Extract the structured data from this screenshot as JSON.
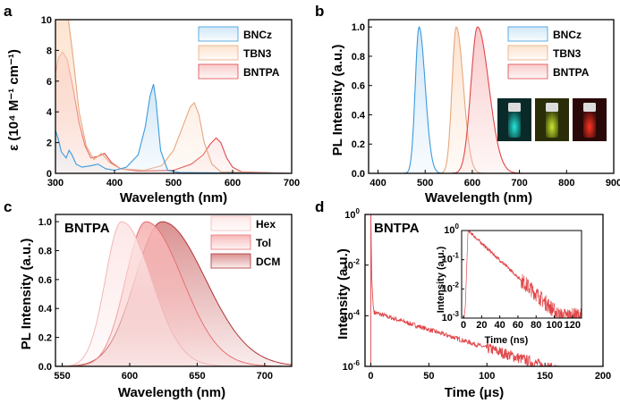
{
  "figure": {
    "panels": [
      "a",
      "b",
      "c",
      "d"
    ]
  },
  "chart_data": [
    {
      "panel": "a",
      "type": "area",
      "xlabel": "Wavelength (nm)",
      "ylabel": "ε (10⁴ M⁻¹ cm⁻¹)",
      "xlim": [
        300,
        700
      ],
      "ylim": [
        0,
        10
      ],
      "xticks": [
        300,
        400,
        500,
        600,
        700
      ],
      "yticks": [
        0,
        2,
        4,
        6,
        8,
        10
      ],
      "legend": "top-right",
      "series": [
        {
          "name": "BNCz",
          "color": "#3a9bdc",
          "fill": "#cfe6f7",
          "points": [
            [
              300,
              2.8
            ],
            [
              305,
              2.2
            ],
            [
              310,
              1.4
            ],
            [
              318,
              1.0
            ],
            [
              323,
              1.5
            ],
            [
              328,
              1.2
            ],
            [
              335,
              0.6
            ],
            [
              345,
              0.4
            ],
            [
              360,
              0.5
            ],
            [
              372,
              0.6
            ],
            [
              385,
              0.3
            ],
            [
              400,
              0.2
            ],
            [
              420,
              0.4
            ],
            [
              440,
              1.2
            ],
            [
              452,
              3.0
            ],
            [
              460,
              5.0
            ],
            [
              466,
              5.8
            ],
            [
              470,
              4.8
            ],
            [
              478,
              1.5
            ],
            [
              490,
              0.2
            ],
            [
              510,
              0.05
            ],
            [
              700,
              0.0
            ]
          ]
        },
        {
          "name": "TBN3",
          "color": "#e6a77e",
          "fill": "#fde1cc",
          "points": [
            [
              300,
              10.5
            ],
            [
              312,
              10.5
            ],
            [
              322,
              10.0
            ],
            [
              330,
              7.5
            ],
            [
              340,
              4.0
            ],
            [
              352,
              1.8
            ],
            [
              365,
              0.9
            ],
            [
              378,
              1.3
            ],
            [
              392,
              0.7
            ],
            [
              410,
              0.3
            ],
            [
              450,
              0.2
            ],
            [
              480,
              0.5
            ],
            [
              500,
              1.5
            ],
            [
              515,
              3.0
            ],
            [
              528,
              4.3
            ],
            [
              535,
              4.6
            ],
            [
              543,
              3.8
            ],
            [
              552,
              2.0
            ],
            [
              565,
              0.6
            ],
            [
              580,
              0.1
            ],
            [
              700,
              0.0
            ]
          ]
        },
        {
          "name": "BNTPA",
          "color": "#e0474a",
          "fill": "#f9c8c8",
          "points": [
            [
              300,
              6.5
            ],
            [
              305,
              7.5
            ],
            [
              312,
              7.9
            ],
            [
              320,
              7.4
            ],
            [
              330,
              5.5
            ],
            [
              340,
              3.3
            ],
            [
              350,
              1.8
            ],
            [
              360,
              1.0
            ],
            [
              372,
              1.1
            ],
            [
              383,
              1.3
            ],
            [
              395,
              0.7
            ],
            [
              410,
              0.3
            ],
            [
              440,
              0.15
            ],
            [
              500,
              0.2
            ],
            [
              530,
              0.6
            ],
            [
              550,
              1.2
            ],
            [
              562,
              1.9
            ],
            [
              572,
              2.3
            ],
            [
              580,
              2.0
            ],
            [
              590,
              1.0
            ],
            [
              600,
              0.4
            ],
            [
              615,
              0.1
            ],
            [
              700,
              0.0
            ]
          ]
        }
      ]
    },
    {
      "panel": "b",
      "type": "area",
      "xlabel": "Wavelength (nm)",
      "ylabel": "PL Intensity (a.u.)",
      "xlim": [
        380,
        900
      ],
      "ylim": [
        0,
        1.05
      ],
      "xticks": [
        400,
        500,
        600,
        700,
        800,
        900
      ],
      "yticks": [
        0.0,
        0.2,
        0.4,
        0.6,
        0.8,
        1.0
      ],
      "legend": "top-right",
      "series": [
        {
          "name": "BNCz",
          "color": "#3a9bdc",
          "fill": "#cfe6f7",
          "peak": 487,
          "width_left": 8,
          "width_right": 13
        },
        {
          "name": "TBN3",
          "color": "#e6a77e",
          "fill": "#fde1cc",
          "peak": 566,
          "width_left": 9,
          "width_right": 15
        },
        {
          "name": "BNTPA",
          "color": "#e0474a",
          "fill": "#f9c8c8",
          "peak": 611,
          "width_left": 14,
          "width_right": 24
        }
      ],
      "inset_photo": {
        "vials": [
          {
            "glow": "#22e6d8",
            "background": "#0a2a2a"
          },
          {
            "glow": "#c8e62e",
            "background": "#2a2e08"
          },
          {
            "glow": "#ff3322",
            "background": "#2a0808"
          }
        ]
      }
    },
    {
      "panel": "c",
      "type": "area",
      "title": "BNTPA",
      "xlabel": "Wavelength (nm)",
      "ylabel": "PL Intensity (a.u.)",
      "xlim": [
        545,
        720
      ],
      "ylim": [
        0,
        1.05
      ],
      "xticks": [
        550,
        600,
        650,
        700
      ],
      "yticks": [
        0.0,
        0.2,
        0.4,
        0.6,
        0.8,
        1.0
      ],
      "legend": "top-right",
      "series": [
        {
          "name": "Hex",
          "color": "#f2b7b7",
          "fill": "#fde6e6",
          "peak": 594,
          "width_left": 12,
          "width_right": 22
        },
        {
          "name": "Tol",
          "color": "#e67070",
          "fill": "#f7b5b5",
          "peak": 612,
          "width_left": 15,
          "width_right": 27
        },
        {
          "name": "DCM",
          "color": "#b03535",
          "fill": "#d98c8c",
          "peak": 624,
          "width_left": 20,
          "width_right": 32
        }
      ]
    },
    {
      "panel": "d",
      "type": "line",
      "title": "BNTPA",
      "xlabel": "Time (μs)",
      "ylabel": "Intensity (a.u.)",
      "xlim": [
        -5,
        200
      ],
      "ylim_log10": [
        -6,
        0
      ],
      "xticks": [
        0,
        50,
        100,
        150,
        200
      ],
      "yticks_log10": [
        0,
        -2,
        -4,
        -6
      ],
      "ytick_labels": [
        [
          "10",
          "0"
        ],
        [
          "10",
          "-2"
        ],
        [
          "10",
          "-4"
        ],
        [
          "10",
          "-6"
        ]
      ],
      "color": "#e0474a",
      "decay": {
        "prompt_peak": 1.0,
        "delayed_start": 0.00015,
        "tail_lifetime_us": 30,
        "noise_floor": 1e-06
      },
      "inset": {
        "xlabel": "Time (ns)",
        "ylabel": "Intensity (a.u.)",
        "xlim": [
          -2,
          130
        ],
        "ylim_log10": [
          -3,
          0
        ],
        "xticks": [
          0,
          20,
          40,
          60,
          80,
          100,
          120
        ],
        "ytick_labels": [
          [
            "10",
            "0"
          ],
          [
            "10",
            "-1"
          ],
          [
            "10",
            "-2"
          ],
          [
            "10",
            "-3"
          ]
        ],
        "decay": {
          "rise_ns": 5,
          "lifetime_ns": 15,
          "noise_floor": 0.0012
        }
      }
    }
  ]
}
